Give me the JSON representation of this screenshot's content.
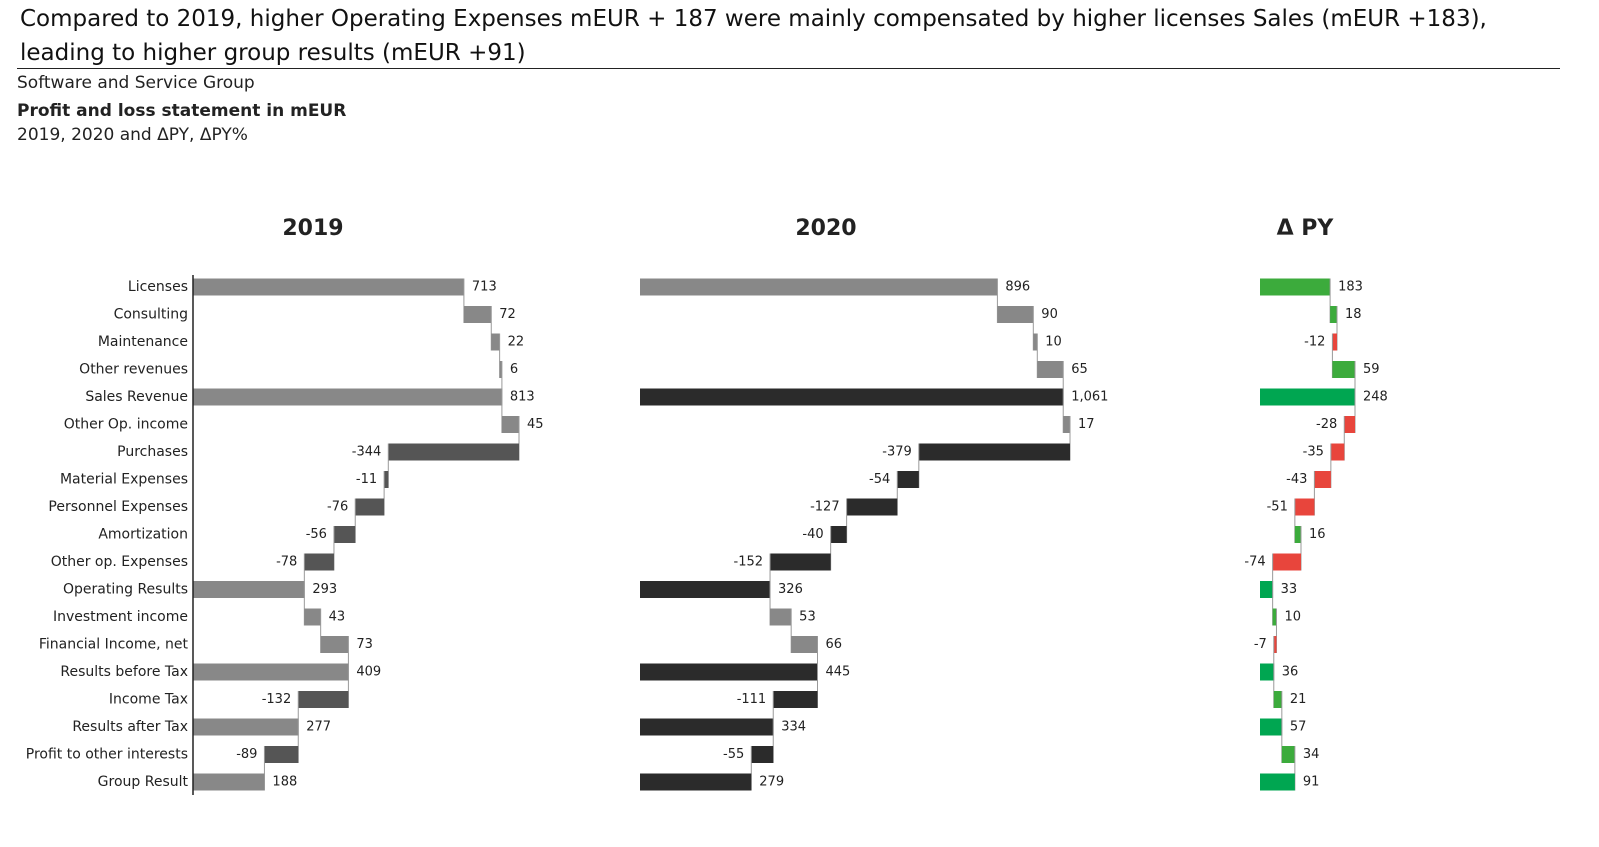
{
  "header": {
    "title": "Compared to 2019, higher Operating Expenses mEUR + 187 were mainly compensated by higher licenses Sales (mEUR +183), leading to higher group results (mEUR +91)",
    "subtitle": "Software and Service Group",
    "heading": "Profit and loss statement in mEUR",
    "description": "2019, 2020 and ΔPY, ΔPY%"
  },
  "chart_data": [
    {
      "type": "waterfall",
      "title": "2019",
      "categories": [
        "Licenses",
        "Consulting",
        "Maintenance",
        "Other revenues",
        "Sales Revenue",
        "Other Op. income",
        "Purchases",
        "Material Expenses",
        "Personnel Expenses",
        "Amortization",
        "Other op. Expenses",
        "Operating Results",
        "Investment income",
        "Financial Income, net",
        "Results before Tax",
        "Income Tax",
        "Results after Tax",
        "Profit to other interests",
        "Group Result"
      ],
      "values": [
        713,
        72,
        22,
        6,
        813,
        45,
        -344,
        -11,
        -76,
        -56,
        -78,
        293,
        43,
        73,
        409,
        -132,
        277,
        -89,
        188
      ],
      "colors": {
        "total": "#888888",
        "increase": "#888888",
        "decrease": "#555555"
      }
    },
    {
      "type": "waterfall",
      "title": "2020",
      "values": [
        896,
        90,
        10,
        65,
        1061,
        17,
        -379,
        -54,
        -127,
        -40,
        -152,
        326,
        53,
        66,
        445,
        -111,
        334,
        -55,
        279
      ],
      "value_labels": [
        "896",
        "90",
        "10",
        "65",
        "1,061",
        "17",
        "-379",
        "-54",
        "-127",
        "-40",
        "-152",
        "326",
        "53",
        "66",
        "445",
        "-111",
        "334",
        "-55",
        "279"
      ],
      "colors": {
        "total": "#2b2b2b",
        "increase": "#888888",
        "decrease": "#2b2b2b"
      }
    },
    {
      "type": "waterfall",
      "title": "Δ PY",
      "values": [
        183,
        18,
        -12,
        59,
        248,
        -28,
        -35,
        -43,
        -51,
        16,
        -74,
        33,
        10,
        -7,
        36,
        21,
        57,
        34,
        91
      ],
      "colors": {
        "total": "#00a651",
        "increase": "#3cab3c",
        "decrease": "#e8453c"
      }
    }
  ]
}
